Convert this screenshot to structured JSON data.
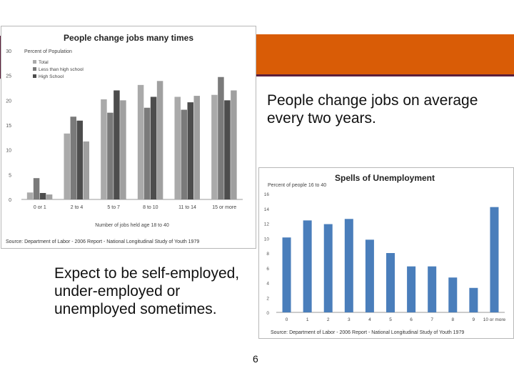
{
  "slide": {
    "text_right": "People change jobs on average every two years.",
    "text_left": "Expect to be self-employed, under-employed or unemployed sometimes.",
    "page_number": "6"
  },
  "colors": {
    "accent_bar": "#d95c06",
    "accent_line": "#5c1f3c",
    "total": "#aaaaaa",
    "less_than_high_school": "#7a7a7a",
    "high_school": "#4d4d4d",
    "fourth_series": "#a0a0a0",
    "unemployment_bar": "#4a7ebb"
  },
  "chart_data": [
    {
      "type": "bar",
      "title": "People change jobs many times",
      "ylabel": "Percent of Population",
      "xlabel": "Number of jobs held age 18 to 40",
      "source": "Source: Department of Labor - 2006 Report - National Longitudinal Study of Youth 1979",
      "categories": [
        "0 or 1",
        "2 to 4",
        "5 to 7",
        "8 to 10",
        "11 to 14",
        "15 or more"
      ],
      "ylim": [
        0,
        30
      ],
      "yticks": [
        0,
        5,
        10,
        15,
        20,
        25,
        30
      ],
      "legend_position": "top-left",
      "series": [
        {
          "name": "Total",
          "values": [
            1.4,
            13.3,
            20.2,
            23.1,
            20.7,
            21.1
          ]
        },
        {
          "name": "Less than high school",
          "values": [
            4.3,
            16.7,
            17.5,
            18.5,
            18.1,
            24.7
          ]
        },
        {
          "name": "High School",
          "values": [
            1.3,
            15.9,
            22.0,
            20.7,
            19.6,
            20.0
          ]
        },
        {
          "values": [
            1.0,
            11.7,
            20.0,
            23.9,
            20.9,
            22.0
          ]
        }
      ]
    },
    {
      "type": "bar",
      "title": "Spells of Unemployment",
      "ylabel": "Percent of people 16 to 40",
      "source": "Source: Department of Labor - 2006 Report - National Longitudinal Study of Youth 1979",
      "categories": [
        "0",
        "1",
        "2",
        "3",
        "4",
        "5",
        "6",
        "7",
        "8",
        "9",
        "10 or more"
      ],
      "ylim": [
        0,
        16
      ],
      "yticks": [
        0,
        2,
        4,
        6,
        8,
        10,
        12,
        14,
        16
      ],
      "values": [
        10.1,
        12.4,
        11.9,
        12.6,
        9.8,
        8.0,
        6.2,
        6.2,
        4.7,
        3.3,
        14.2
      ]
    }
  ]
}
